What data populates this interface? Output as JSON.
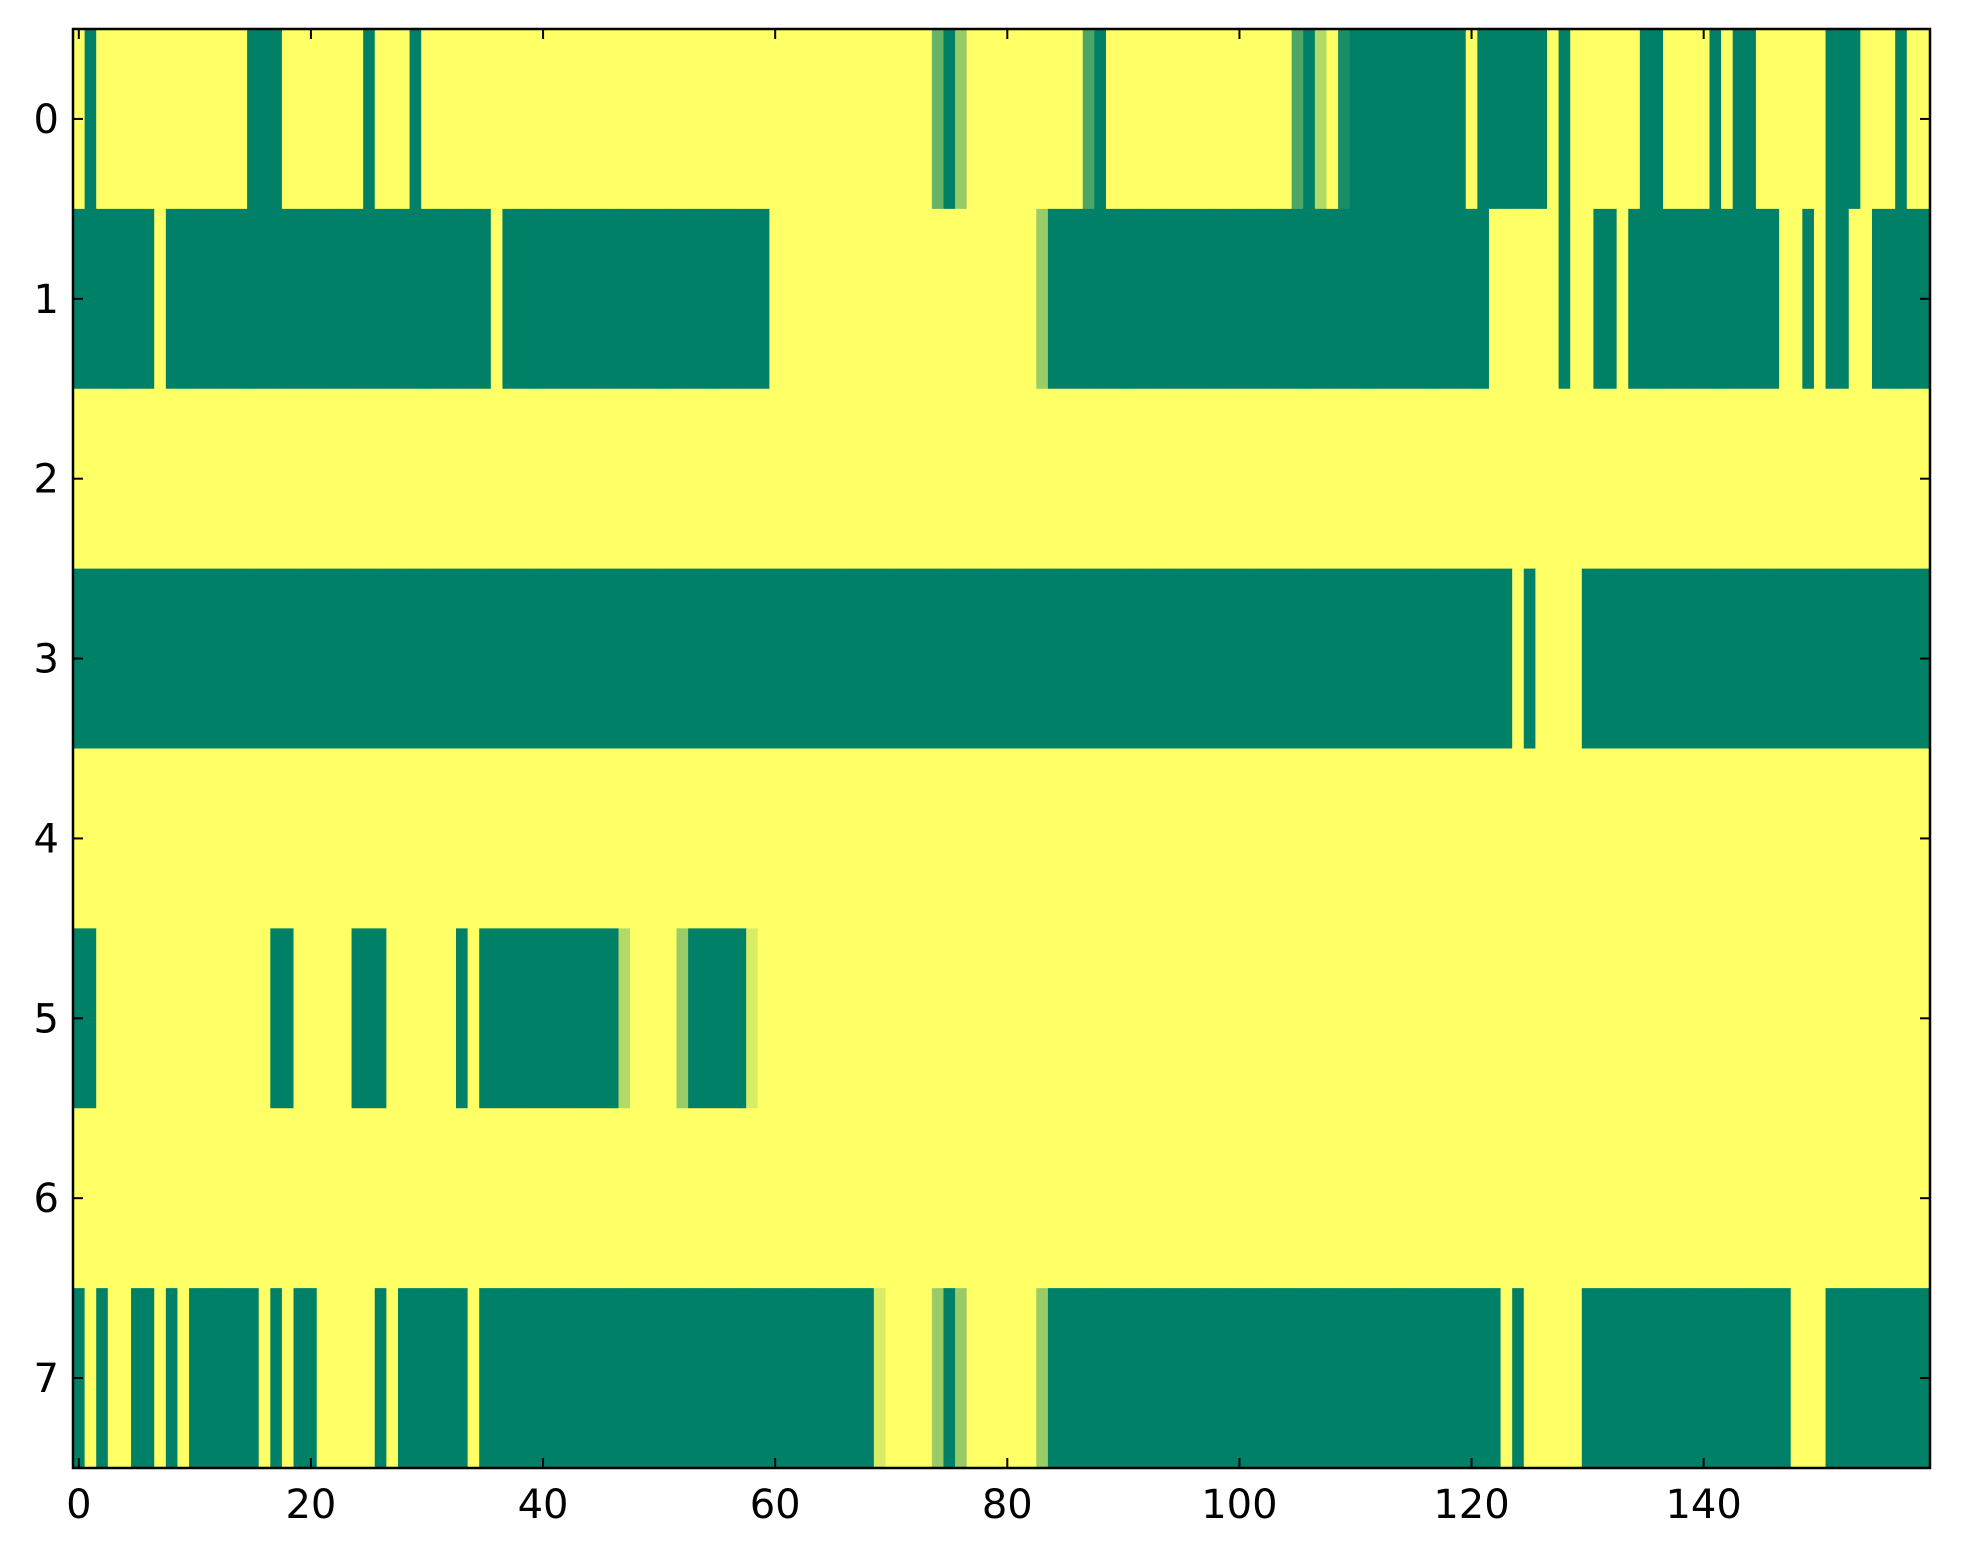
{
  "chart_data": {
    "type": "heatmap",
    "colormap": "summer",
    "xlim": [
      -0.5,
      159.5
    ],
    "ylim": [
      7.5,
      -0.5
    ],
    "xticks": [
      0,
      20,
      40,
      60,
      80,
      100,
      120,
      140
    ],
    "yticks": [
      0,
      1,
      2,
      3,
      4,
      5,
      6,
      7
    ],
    "z": [
      [
        1,
        0,
        1,
        1,
        1,
        1,
        1,
        1,
        1,
        1,
        1,
        1,
        1,
        1,
        1,
        0,
        0,
        0,
        1,
        1,
        1,
        1,
        1,
        1,
        1,
        0,
        1,
        1,
        1,
        0,
        1,
        1,
        1,
        1,
        1,
        1,
        1,
        1,
        1,
        1,
        1,
        1,
        1,
        1,
        1,
        1,
        1,
        1,
        1,
        1,
        1,
        1,
        1,
        1,
        1,
        1,
        1,
        1,
        1,
        1,
        1,
        1,
        1,
        1,
        1,
        1,
        1,
        1,
        1,
        1,
        1,
        1,
        1,
        1,
        0.4,
        0,
        0.6,
        1,
        1,
        1,
        1,
        1,
        1,
        1,
        1,
        1,
        1,
        0.3,
        0,
        1,
        1,
        1,
        1,
        1,
        1,
        1,
        1,
        1,
        1,
        1,
        1,
        1,
        1,
        1,
        1,
        0.3,
        0,
        0.7,
        1,
        0.1,
        0,
        0,
        0,
        0,
        0,
        0,
        0,
        0,
        0,
        0,
        1,
        0,
        0,
        0,
        0,
        0,
        0,
        1,
        0,
        1,
        1,
        1,
        1,
        1,
        1,
        0,
        0,
        1,
        1,
        1,
        1,
        0,
        1,
        0,
        0,
        1,
        1,
        1,
        1,
        1,
        1,
        0,
        0,
        0,
        1,
        1,
        1,
        0,
        1,
        1
      ],
      [
        0,
        0,
        0,
        0,
        0,
        0,
        0,
        1,
        0,
        0,
        0,
        0,
        0,
        0,
        0,
        0,
        0,
        0,
        0,
        0,
        0,
        0,
        0,
        0,
        0,
        0,
        0,
        0,
        0,
        0,
        0,
        0,
        0,
        0,
        0,
        0,
        1,
        0,
        0,
        0,
        0,
        0,
        0,
        0,
        0,
        0,
        0,
        0,
        0,
        0,
        0,
        0,
        0,
        0,
        0,
        0,
        0,
        0,
        0,
        0,
        1,
        1,
        1,
        1,
        1,
        1,
        1,
        1,
        1,
        1,
        1,
        1,
        1,
        1,
        1,
        1,
        1,
        1,
        1,
        1,
        1,
        1,
        1,
        0.6,
        0,
        0,
        0,
        0,
        0,
        0,
        0,
        0,
        0,
        0,
        0,
        0,
        0,
        0,
        0,
        0,
        0,
        0,
        0,
        0,
        0,
        0,
        0,
        0,
        0,
        0,
        0,
        0,
        0,
        0,
        0,
        0,
        0,
        0,
        0,
        0,
        0,
        0,
        1,
        1,
        1,
        1,
        1,
        1,
        0,
        1,
        1,
        0,
        0,
        1,
        0,
        0,
        0,
        0,
        0,
        0,
        0,
        0,
        0,
        0,
        0,
        0,
        0,
        1,
        1,
        0,
        1,
        0,
        0,
        1,
        1,
        0,
        0,
        0,
        0,
        0
      ],
      [
        1,
        1,
        1,
        1,
        1,
        1,
        1,
        1,
        1,
        1,
        1,
        1,
        1,
        1,
        1,
        1,
        1,
        1,
        1,
        1,
        1,
        1,
        1,
        1,
        1,
        1,
        1,
        1,
        1,
        1,
        1,
        1,
        1,
        1,
        1,
        1,
        1,
        1,
        1,
        1,
        1,
        1,
        1,
        1,
        1,
        1,
        1,
        1,
        1,
        1,
        1,
        1,
        1,
        1,
        1,
        1,
        1,
        1,
        1,
        1,
        1,
        1,
        1,
        1,
        1,
        1,
        1,
        1,
        1,
        1,
        1,
        1,
        1,
        1,
        1,
        1,
        1,
        1,
        1,
        1,
        1,
        1,
        1,
        1,
        1,
        1,
        1,
        1,
        1,
        1,
        1,
        1,
        1,
        1,
        1,
        1,
        1,
        1,
        1,
        1,
        1,
        1,
        1,
        1,
        1,
        1,
        1,
        1,
        1,
        1,
        1,
        1,
        1,
        1,
        1,
        1,
        1,
        1,
        1,
        1,
        1,
        1,
        1,
        1,
        1,
        1,
        1,
        1,
        1,
        1,
        1,
        1,
        1,
        1,
        1,
        1,
        1,
        1,
        1,
        1,
        1,
        1,
        1,
        1,
        1,
        1,
        1,
        1,
        1,
        1,
        1,
        1,
        1,
        1,
        1,
        1,
        1,
        1,
        1,
        1
      ],
      [
        0,
        0,
        0,
        0,
        0,
        0,
        0,
        0,
        0,
        0,
        0,
        0,
        0,
        0,
        0,
        0,
        0,
        0,
        0,
        0,
        0,
        0,
        0,
        0,
        0,
        0,
        0,
        0,
        0,
        0,
        0,
        0,
        0,
        0,
        0,
        0,
        0,
        0,
        0,
        0,
        0,
        0,
        0,
        0,
        0,
        0,
        0,
        0,
        0,
        0,
        0,
        0,
        0,
        0,
        0,
        0,
        0,
        0,
        0,
        0,
        0,
        0,
        0,
        0,
        0,
        0,
        0,
        0,
        0,
        0,
        0,
        0,
        0,
        0,
        0,
        0,
        0,
        0,
        0,
        0,
        0,
        0,
        0,
        0,
        0,
        0,
        0,
        0,
        0,
        0,
        0,
        0,
        0,
        0,
        0,
        0,
        0,
        0,
        0,
        0,
        0,
        0,
        0,
        0,
        0,
        0,
        0,
        0,
        0,
        0,
        0,
        0,
        0,
        0,
        0,
        0,
        0,
        0,
        0,
        0,
        0,
        0,
        0,
        0,
        1,
        0,
        1,
        1,
        1,
        1,
        0,
        0,
        0,
        0,
        0,
        0,
        0,
        0,
        0,
        0,
        0,
        0,
        0,
        0,
        0,
        0,
        0,
        0,
        0,
        0,
        0,
        0,
        0,
        0,
        0,
        0,
        0,
        0,
        0,
        0
      ],
      [
        1,
        1,
        1,
        1,
        1,
        1,
        1,
        1,
        1,
        1,
        1,
        1,
        1,
        1,
        1,
        1,
        1,
        1,
        1,
        1,
        1,
        1,
        1,
        1,
        1,
        1,
        1,
        1,
        1,
        1,
        1,
        1,
        1,
        1,
        1,
        1,
        1,
        1,
        1,
        1,
        1,
        1,
        1,
        1,
        1,
        1,
        1,
        1,
        1,
        1,
        1,
        1,
        1,
        1,
        1,
        1,
        1,
        1,
        1,
        1,
        1,
        1,
        1,
        1,
        1,
        1,
        1,
        1,
        1,
        1,
        1,
        1,
        1,
        1,
        1,
        1,
        1,
        1,
        1,
        1,
        1,
        1,
        1,
        1,
        1,
        1,
        1,
        1,
        1,
        1,
        1,
        1,
        1,
        1,
        1,
        1,
        1,
        1,
        1,
        1,
        1,
        1,
        1,
        1,
        1,
        1,
        1,
        1,
        1,
        1,
        1,
        1,
        1,
        1,
        1,
        1,
        1,
        1,
        1,
        1,
        1,
        1,
        1,
        1,
        1,
        1,
        1,
        1,
        1,
        1,
        1,
        1,
        1,
        1,
        1,
        1,
        1,
        1,
        1,
        1,
        1,
        1,
        1,
        1,
        1,
        1,
        1,
        1,
        1,
        1,
        1,
        1,
        1,
        1,
        1,
        1,
        1,
        1,
        1,
        1
      ],
      [
        0,
        0,
        1,
        1,
        1,
        1,
        1,
        1,
        1,
        1,
        1,
        1,
        1,
        1,
        1,
        1,
        1,
        0,
        0,
        1,
        1,
        1,
        1,
        1,
        0,
        0,
        0,
        1,
        1,
        1,
        1,
        1,
        1,
        0,
        1,
        0,
        0,
        0,
        0,
        0,
        0,
        0,
        0,
        0,
        0,
        0,
        0,
        0.7,
        1,
        1,
        1,
        1,
        0.6,
        0,
        0,
        0,
        0,
        0,
        0.85,
        1,
        1,
        1,
        1,
        1,
        1,
        1,
        1,
        1,
        1,
        1,
        1,
        1,
        1,
        1,
        1,
        1,
        1,
        1,
        1,
        1,
        1,
        1,
        1,
        1,
        1,
        1,
        1,
        1,
        1,
        1,
        1,
        1,
        1,
        1,
        1,
        1,
        1,
        1,
        1,
        1,
        1,
        1,
        1,
        1,
        1,
        1,
        1,
        1,
        1,
        1,
        1,
        1,
        1,
        1,
        1,
        1,
        1,
        1,
        1,
        1,
        1,
        1,
        1,
        1,
        1,
        1,
        1,
        1,
        1,
        1,
        1,
        1,
        1,
        1,
        1,
        1,
        1,
        1,
        1,
        1,
        1,
        1,
        1,
        1,
        1,
        1,
        1,
        1,
        1,
        1,
        1,
        1,
        1,
        1,
        1,
        1,
        1,
        1,
        1,
        1
      ],
      [
        1,
        1,
        1,
        1,
        1,
        1,
        1,
        1,
        1,
        1,
        1,
        1,
        1,
        1,
        1,
        1,
        1,
        1,
        1,
        1,
        1,
        1,
        1,
        1,
        1,
        1,
        1,
        1,
        1,
        1,
        1,
        1,
        1,
        1,
        1,
        1,
        1,
        1,
        1,
        1,
        1,
        1,
        1,
        1,
        1,
        1,
        1,
        1,
        1,
        1,
        1,
        1,
        1,
        1,
        1,
        1,
        1,
        1,
        1,
        1,
        1,
        1,
        1,
        1,
        1,
        1,
        1,
        1,
        1,
        1,
        1,
        1,
        1,
        1,
        1,
        1,
        1,
        1,
        1,
        1,
        1,
        1,
        1,
        1,
        1,
        1,
        1,
        1,
        1,
        1,
        1,
        1,
        1,
        1,
        1,
        1,
        1,
        1,
        1,
        1,
        1,
        1,
        1,
        1,
        1,
        1,
        1,
        1,
        1,
        1,
        1,
        1,
        1,
        1,
        1,
        1,
        1,
        1,
        1,
        1,
        1,
        1,
        1,
        1,
        1,
        1,
        1,
        1,
        1,
        1,
        1,
        1,
        1,
        1,
        1,
        1,
        1,
        1,
        1,
        1,
        1,
        1,
        1,
        1,
        1,
        1,
        1,
        1,
        1,
        1,
        1,
        1,
        1,
        1,
        1,
        1,
        1,
        1,
        1,
        1
      ],
      [
        0,
        1,
        0,
        1,
        1,
        0,
        0,
        1,
        0,
        1,
        0,
        0,
        0,
        0,
        0,
        0,
        1,
        0,
        1,
        0,
        0,
        1,
        1,
        1,
        1,
        1,
        0,
        1,
        0,
        0,
        0,
        0,
        0,
        0,
        1,
        0,
        0,
        0,
        0,
        0,
        0,
        0,
        0,
        0,
        0,
        0,
        0,
        0,
        0,
        0,
        0,
        0,
        0,
        0,
        0,
        0,
        0,
        0,
        0,
        0,
        0,
        0,
        0,
        0,
        0,
        0,
        0,
        0,
        0,
        0.85,
        1,
        1,
        1,
        1,
        0.6,
        0,
        0.6,
        1,
        1,
        1,
        1,
        1,
        1,
        0.6,
        0,
        0,
        0,
        0,
        0,
        0,
        0,
        0,
        0,
        0,
        0,
        0,
        0,
        0,
        0,
        0,
        0,
        0,
        0,
        0,
        0,
        0,
        0,
        0,
        0,
        0,
        0,
        0,
        0,
        0,
        0,
        0,
        0,
        0,
        0,
        0,
        0,
        0,
        0,
        1,
        0,
        1,
        1,
        1,
        1,
        1,
        0,
        0,
        0,
        0,
        0,
        0,
        0,
        0,
        0,
        0,
        0,
        0,
        0,
        0,
        0,
        0,
        0,
        0,
        1,
        1,
        1,
        0,
        0,
        0,
        0,
        0,
        0,
        0,
        0,
        0
      ]
    ]
  }
}
